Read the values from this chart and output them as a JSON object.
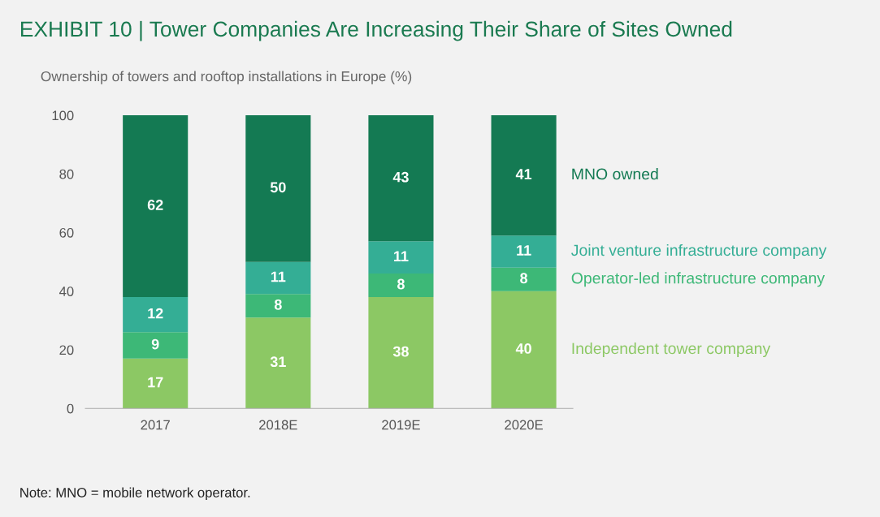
{
  "chart_data": {
    "type": "bar",
    "stacked": true,
    "data_labels": true,
    "title": "EXHIBIT 10 | Tower Companies Are Increasing Their Share of Sites Owned",
    "subtitle": "Ownership of towers and rooftop installations in Europe (%)",
    "categories": [
      "2017",
      "2018E",
      "2019E",
      "2020E"
    ],
    "series": [
      {
        "name": "Independent tower company",
        "color": "#8cc864",
        "values": [
          17,
          31,
          38,
          40
        ]
      },
      {
        "name": "Operator-led infrastructure company",
        "color": "#3db877",
        "values": [
          9,
          8,
          8,
          8
        ]
      },
      {
        "name": "Joint venture infrastructure company",
        "color": "#34ae95",
        "values": [
          12,
          11,
          11,
          11
        ]
      },
      {
        "name": "MNO owned",
        "color": "#147a53",
        "values": [
          62,
          50,
          43,
          41
        ]
      }
    ],
    "ylim": [
      0,
      100
    ],
    "yticks": [
      0,
      20,
      40,
      60,
      80,
      100
    ],
    "grid": false,
    "annotations": [
      "Note: MNO = mobile network operator."
    ]
  }
}
